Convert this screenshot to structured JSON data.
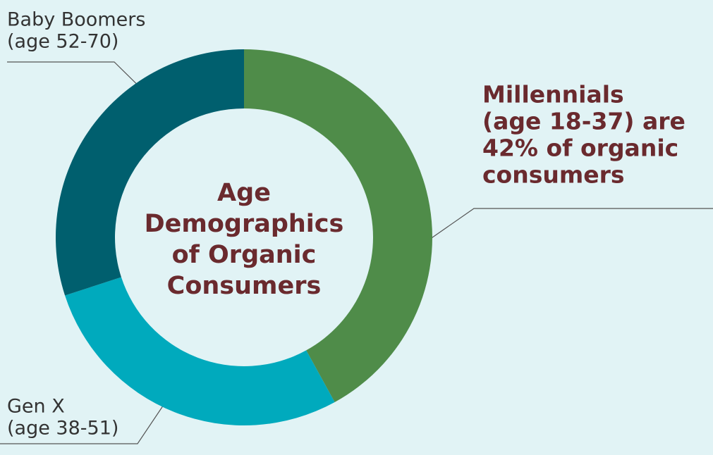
{
  "chart_data": {
    "type": "donut",
    "title": [
      "Age",
      "Demographics",
      "of Organic",
      "Consumers"
    ],
    "categories": [
      [
        "Millennials",
        "(age 18-37) are",
        "42% of organic",
        "consumers"
      ],
      [
        "Gen X",
        "(age 38-51)"
      ],
      [
        "Baby Boomers",
        "(age 52-70)"
      ]
    ],
    "values": [
      42,
      28,
      30
    ],
    "colors": [
      "#4f8c49",
      "#00aabd",
      "#005f6e"
    ]
  }
}
